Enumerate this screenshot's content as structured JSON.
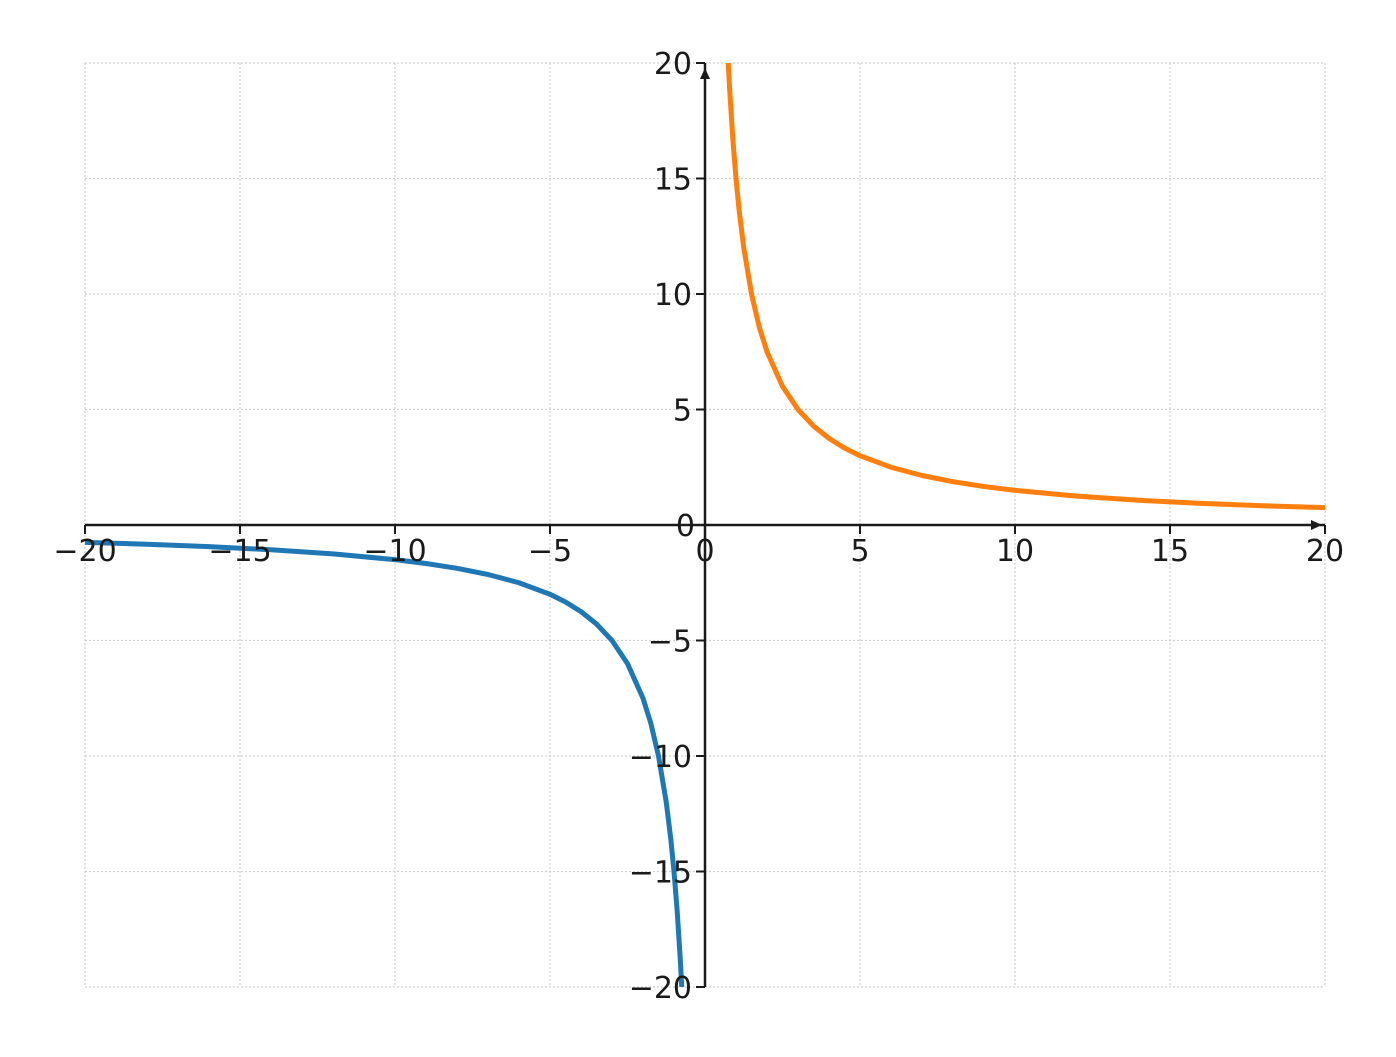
{
  "chart_data": {
    "type": "line",
    "title": "",
    "xlabel": "",
    "ylabel": "",
    "xlim": [
      -20,
      20
    ],
    "ylim": [
      -20,
      20
    ],
    "xticks": [
      -20,
      -15,
      -10,
      -5,
      0,
      5,
      10,
      15,
      20
    ],
    "yticks": [
      -20,
      -15,
      -10,
      -5,
      0,
      5,
      10,
      15,
      20
    ],
    "xtick_labels": [
      "−20",
      "−15",
      "−10",
      "−5",
      "0",
      "5",
      "10",
      "15",
      "20"
    ],
    "ytick_labels": [
      "−20",
      "−15",
      "−10",
      "−5",
      "0",
      "5",
      "10",
      "15",
      "20"
    ],
    "grid": true,
    "axes_through_origin": true,
    "axis_arrows": true,
    "series": [
      {
        "color": "#1f77b4",
        "x": [
          -20,
          -18,
          -16,
          -14,
          -12,
          -10,
          -9,
          -8,
          -7,
          -6,
          -5,
          -4.5,
          -4,
          -3.5,
          -3,
          -2.5,
          -2,
          -1.75,
          -1.5,
          -1.25,
          -1.1,
          -1.0,
          -0.9,
          -0.8,
          -0.75
        ],
        "y": [
          -0.75,
          -0.833,
          -0.9375,
          -1.071,
          -1.25,
          -1.5,
          -1.667,
          -1.875,
          -2.143,
          -2.5,
          -3.0,
          -3.333,
          -3.75,
          -4.286,
          -5.0,
          -6.0,
          -7.5,
          -8.571,
          -10.0,
          -12.0,
          -13.636,
          -15.0,
          -16.667,
          -18.75,
          -20.0
        ]
      },
      {
        "color": "#ff7f0e",
        "x": [
          0.75,
          0.8,
          0.9,
          1.0,
          1.1,
          1.25,
          1.5,
          1.75,
          2,
          2.5,
          3,
          3.5,
          4,
          4.5,
          5,
          6,
          7,
          8,
          9,
          10,
          12,
          14,
          16,
          18,
          20
        ],
        "y": [
          20.0,
          18.75,
          16.667,
          15.0,
          13.636,
          12.0,
          10.0,
          8.571,
          7.5,
          6.0,
          5.0,
          4.286,
          3.75,
          3.333,
          3.0,
          2.5,
          2.143,
          1.875,
          1.667,
          1.5,
          1.25,
          1.071,
          0.9375,
          0.833,
          0.75
        ]
      }
    ]
  }
}
